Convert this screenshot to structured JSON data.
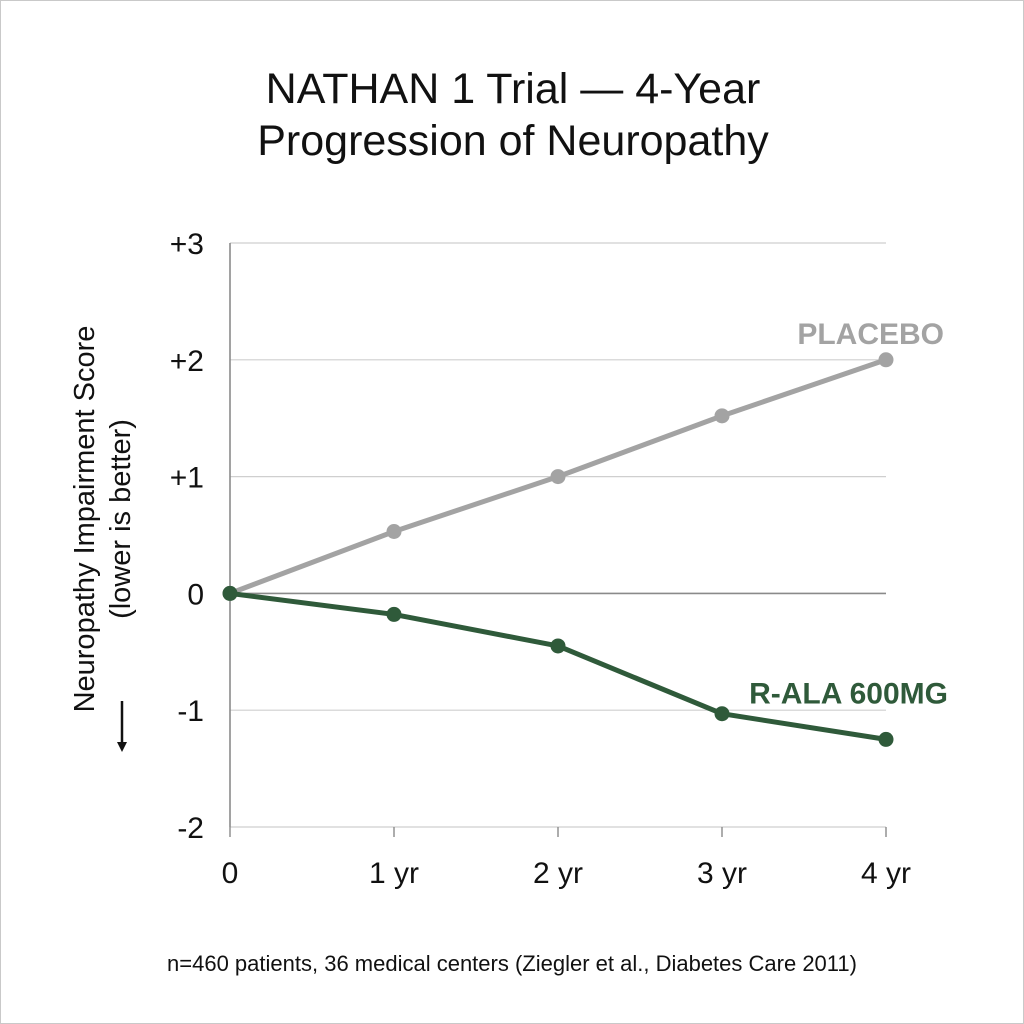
{
  "chart_data": {
    "type": "line",
    "title_lines": [
      "NATHAN 1 Trial — 4-Year",
      "Progression of Neuropathy"
    ],
    "ylabel_lines": [
      "Neuropathy Impairment Score",
      "(lower is better)"
    ],
    "xlabel": "",
    "x": [
      0,
      1,
      2,
      3,
      4
    ],
    "x_tick_labels": [
      "0",
      "1 yr",
      "2 yr",
      "3 yr",
      "4 yr"
    ],
    "y_ticks": [
      3,
      2,
      1,
      0,
      -1,
      -2
    ],
    "y_tick_labels": [
      "+3",
      "+2",
      "+1",
      "0",
      "-1",
      "-2"
    ],
    "xlim": [
      0,
      4
    ],
    "ylim": [
      -2,
      3
    ],
    "grid": true,
    "series": [
      {
        "name": "PLACEBO",
        "color": "#a3a3a3",
        "values": [
          0,
          0.53,
          1.0,
          1.52,
          2.0
        ]
      },
      {
        "name": "R-ALA 600MG",
        "color": "#2f5a3a",
        "values": [
          0,
          -0.18,
          -0.45,
          -1.03,
          -1.25
        ]
      }
    ],
    "footnote": "n=460 patients, 36 medical centers (Ziegler et al., Diabetes Care 2011)"
  }
}
